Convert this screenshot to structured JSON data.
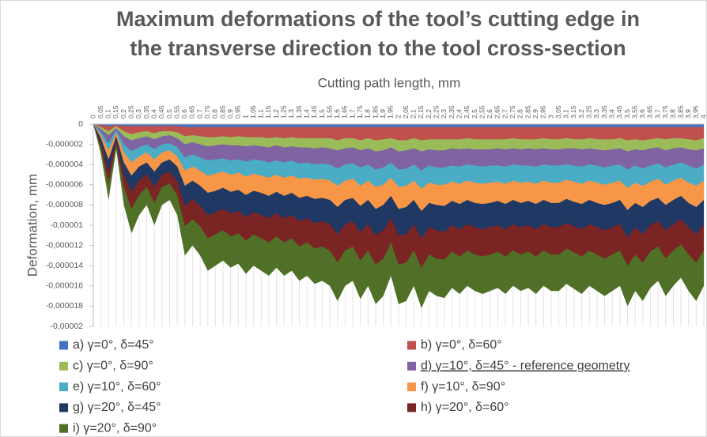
{
  "chart_data": {
    "type": "area",
    "title": [
      "Maximum deformations of the tool’s cutting edge in",
      "the transverse direction to the tool cross-section"
    ],
    "x_label": "Cutting path length, mm",
    "y_label": "Deformation, mm",
    "categories": [
      "0",
      "0,05",
      "0,1",
      "0,15",
      "0,2",
      "0,25",
      "0,3",
      "0,35",
      "0,4",
      "0,45",
      "0,5",
      "0,55",
      "0,6",
      "0,65",
      "0,7",
      "0,75",
      "0,8",
      "0,85",
      "0,9",
      "0,95",
      "1",
      "1,05",
      "1,1",
      "1,15",
      "1,2",
      "1,25",
      "1,3",
      "1,35",
      "1,4",
      "1,45",
      "1,5",
      "1,55",
      "1,6",
      "1,65",
      "1,7",
      "1,75",
      "1,8",
      "1,85",
      "1,9",
      "1,95",
      "2",
      "2,05",
      "2,1",
      "2,15",
      "2,2",
      "2,25",
      "2,3",
      "2,35",
      "2,4",
      "2,45",
      "2,5",
      "2,55",
      "2,6",
      "2,65",
      "2,7",
      "2,75",
      "2,8",
      "2,85",
      "2,9",
      "2,95",
      "3",
      "3,05",
      "3,1",
      "3,15",
      "3,2",
      "3,25",
      "3,3",
      "3,35",
      "3,4",
      "3,45",
      "3,5",
      "3,55",
      "3,6",
      "3,65",
      "3,7",
      "3,75",
      "3,8",
      "3,85",
      "3,9",
      "3,95",
      "4"
    ],
    "ylim": [
      -2e-05,
      0
    ],
    "yticks": [
      0,
      {
        "value": -2e-06,
        "label": "-0,000002"
      },
      {
        "value": -4e-06,
        "label": "-0,000004"
      },
      {
        "value": -6e-06,
        "label": "-0,000006"
      },
      {
        "value": -8e-06,
        "label": "-0,000008"
      },
      {
        "value": -1e-05,
        "label": "-0,00001"
      },
      {
        "value": -1.2e-05,
        "label": "-0,000012"
      },
      {
        "value": -1.4e-05,
        "label": "-0,000014"
      },
      {
        "value": -1.6e-05,
        "label": "-0,000016"
      },
      {
        "value": -1.8e-05,
        "label": "-0,000018"
      },
      {
        "value": -2e-05,
        "label": "-0,00002"
      }
    ],
    "legend": "bottom",
    "series": [
      {
        "name": "a) γ=0°, δ=45°",
        "color": "#4472c4",
        "values": [
          0,
          -1e-07,
          -2e-07,
          -1e-07,
          -2e-07,
          -2e-07,
          -2e-07,
          -2e-07,
          -2e-07,
          -2e-07,
          -2e-07,
          -2e-07,
          -3e-07,
          -3e-07,
          -3e-07,
          -3e-07,
          -3e-07,
          -3e-07,
          -3e-07,
          -3e-07,
          -3e-07,
          -3e-07,
          -3e-07,
          -3e-07,
          -3e-07,
          -3e-07,
          -3e-07,
          -3e-07,
          -3e-07,
          -3e-07,
          -3e-07,
          -3e-07,
          -3e-07,
          -3e-07,
          -3e-07,
          -3e-07,
          -3e-07,
          -3e-07,
          -3e-07,
          -3e-07,
          -3e-07,
          -3e-07,
          -3e-07,
          -3e-07,
          -3e-07,
          -3e-07,
          -3e-07,
          -3e-07,
          -3e-07,
          -3e-07,
          -3e-07,
          -3e-07,
          -3e-07,
          -3e-07,
          -3e-07,
          -3e-07,
          -3e-07,
          -3e-07,
          -3e-07,
          -3e-07,
          -3e-07,
          -3e-07,
          -3e-07,
          -3e-07,
          -3e-07,
          -3e-07,
          -3e-07,
          -3e-07,
          -3e-07,
          -3e-07,
          -3e-07,
          -3e-07,
          -3e-07,
          -3e-07,
          -3e-07,
          -3e-07,
          -3e-07,
          -3e-07,
          -3e-07,
          -3e-07,
          -3e-07
        ]
      },
      {
        "name": "b) γ=0°, δ=60°",
        "color": "#c0504d",
        "values": [
          0,
          -3e-07,
          -7e-07,
          -2e-07,
          -7e-07,
          -1e-06,
          -8e-07,
          -7e-07,
          -9e-07,
          -7e-07,
          -7e-07,
          -8e-07,
          -1.2e-06,
          -1.1e-06,
          -1.2e-06,
          -1.3e-06,
          -1.3e-06,
          -1.2e-06,
          -1.3e-06,
          -1.2e-06,
          -1.3e-06,
          -1.3e-06,
          -1.3e-06,
          -1.4e-06,
          -1.3e-06,
          -1.4e-06,
          -1.3e-06,
          -1.4e-06,
          -1.4e-06,
          -1.4e-06,
          -1.4e-06,
          -1.4e-06,
          -1.6e-06,
          -1.4e-06,
          -1.4e-06,
          -1.6e-06,
          -1.4e-06,
          -1.6e-06,
          -1.5e-06,
          -1.4e-06,
          -1.6e-06,
          -1.6e-06,
          -1.4e-06,
          -1.6e-06,
          -1.5e-06,
          -1.5e-06,
          -1.5e-06,
          -1.5e-06,
          -1.5e-06,
          -1.4e-06,
          -1.5e-06,
          -1.5e-06,
          -1.5e-06,
          -1.5e-06,
          -1.5e-06,
          -1.4e-06,
          -1.5e-06,
          -1.5e-06,
          -1.5e-06,
          -1.4e-06,
          -1.5e-06,
          -1.5e-06,
          -1.4e-06,
          -1.5e-06,
          -1.5e-06,
          -1.4e-06,
          -1.5e-06,
          -1.5e-06,
          -1.5e-06,
          -1.4e-06,
          -1.6e-06,
          -1.5e-06,
          -1.6e-06,
          -1.5e-06,
          -1.4e-06,
          -1.5e-06,
          -1.4e-06,
          -1.4e-06,
          -1.5e-06,
          -1.6e-06,
          -1.4e-06
        ]
      },
      {
        "name": "c) γ=0°, δ=90°",
        "color": "#9bbb59",
        "values": [
          0,
          -5e-07,
          -1.1e-06,
          -4e-07,
          -1.2e-06,
          -1.6e-06,
          -1.4e-06,
          -1.2e-06,
          -1.5e-06,
          -1.2e-06,
          -1.1e-06,
          -1.4e-06,
          -2e-06,
          -1.8e-06,
          -2e-06,
          -2.2e-06,
          -2.1e-06,
          -2e-06,
          -2.1e-06,
          -2.1e-06,
          -2.2e-06,
          -2.1e-06,
          -2.2e-06,
          -2.3e-06,
          -2.1e-06,
          -2.3e-06,
          -2.2e-06,
          -2.3e-06,
          -2.3e-06,
          -2.4e-06,
          -2.3e-06,
          -2.4e-06,
          -2.6e-06,
          -2.4e-06,
          -2.3e-06,
          -2.6e-06,
          -2.4e-06,
          -2.7e-06,
          -2.6e-06,
          -2.3e-06,
          -2.7e-06,
          -2.6e-06,
          -2.4e-06,
          -2.7e-06,
          -2.5e-06,
          -2.6e-06,
          -2.6e-06,
          -2.4e-06,
          -2.5e-06,
          -2.4e-06,
          -2.5e-06,
          -2.5e-06,
          -2.5e-06,
          -2.4e-06,
          -2.5e-06,
          -2.4e-06,
          -2.5e-06,
          -2.4e-06,
          -2.5e-06,
          -2.4e-06,
          -2.5e-06,
          -2.5e-06,
          -2.4e-06,
          -2.4e-06,
          -2.5e-06,
          -2.4e-06,
          -2.5e-06,
          -2.6e-06,
          -2.5e-06,
          -2.4e-06,
          -2.7e-06,
          -2.5e-06,
          -2.6e-06,
          -2.4e-06,
          -2.3e-06,
          -2.6e-06,
          -2.4e-06,
          -2.3e-06,
          -2.5e-06,
          -2.6e-06,
          -2.4e-06
        ]
      },
      {
        "name": "d) γ=10°, δ=45° - reference geometry",
        "color": "#8064a2",
        "values": [
          0,
          -8e-07,
          -1.9e-06,
          -6e-07,
          -2e-06,
          -2.7e-06,
          -2.3e-06,
          -2e-06,
          -2.5e-06,
          -2e-06,
          -1.9e-06,
          -2.3e-06,
          -3.3e-06,
          -3e-06,
          -3.3e-06,
          -3.6e-06,
          -3.5e-06,
          -3.4e-06,
          -3.6e-06,
          -3.5e-06,
          -3.7e-06,
          -3.5e-06,
          -3.6e-06,
          -3.8e-06,
          -3.6e-06,
          -3.8e-06,
          -3.6e-06,
          -3.9e-06,
          -3.8e-06,
          -4e-06,
          -3.9e-06,
          -4e-06,
          -4.4e-06,
          -4e-06,
          -3.9e-06,
          -4.3e-06,
          -4e-06,
          -4.5e-06,
          -4.3e-06,
          -3.8e-06,
          -4.5e-06,
          -4.4e-06,
          -4e-06,
          -4.6e-06,
          -4.1e-06,
          -4.3e-06,
          -4.3e-06,
          -4.1e-06,
          -4.2e-06,
          -4e-06,
          -4.1e-06,
          -4.2e-06,
          -4.1e-06,
          -4.1e-06,
          -4.2e-06,
          -4e-06,
          -4.1e-06,
          -4.1e-06,
          -4.2e-06,
          -4e-06,
          -4.1e-06,
          -4.1e-06,
          -4e-06,
          -4.1e-06,
          -4.2e-06,
          -4e-06,
          -4.1e-06,
          -4.3e-06,
          -4.1e-06,
          -4e-06,
          -4.5e-06,
          -4.1e-06,
          -4.4e-06,
          -4.1e-06,
          -3.9e-06,
          -4.3e-06,
          -4e-06,
          -3.8e-06,
          -4.1e-06,
          -4.4e-06,
          -4e-06
        ]
      },
      {
        "name": "e) γ=10°, δ=60°",
        "color": "#4bacc6",
        "values": [
          0,
          -1.1e-06,
          -2.6e-06,
          -9e-07,
          -2.8e-06,
          -3.8e-06,
          -3.2e-06,
          -2.8e-06,
          -3.5e-06,
          -2.8e-06,
          -2.6e-06,
          -3.2e-06,
          -4.6e-06,
          -4.2e-06,
          -4.6e-06,
          -5.1e-06,
          -4.9e-06,
          -4.7e-06,
          -5e-06,
          -4.8e-06,
          -5.2e-06,
          -4.9e-06,
          -5.1e-06,
          -5.3e-06,
          -5e-06,
          -5.3e-06,
          -5.1e-06,
          -5.4e-06,
          -5.3e-06,
          -5.5e-06,
          -5.4e-06,
          -5.6e-06,
          -6.1e-06,
          -5.6e-06,
          -5.4e-06,
          -6.1e-06,
          -5.6e-06,
          -6.2e-06,
          -6e-06,
          -5.3e-06,
          -6.2e-06,
          -6.1e-06,
          -5.6e-06,
          -6.4e-06,
          -5.8e-06,
          -6e-06,
          -6e-06,
          -5.7e-06,
          -5.9e-06,
          -5.6e-06,
          -5.8e-06,
          -5.9e-06,
          -5.8e-06,
          -5.7e-06,
          -5.9e-06,
          -5.6e-06,
          -5.8e-06,
          -5.7e-06,
          -5.9e-06,
          -5.6e-06,
          -5.8e-06,
          -5.8e-06,
          -5.5e-06,
          -5.7e-06,
          -5.9e-06,
          -5.6e-06,
          -5.8e-06,
          -6e-06,
          -5.8e-06,
          -5.6e-06,
          -6.3e-06,
          -5.8e-06,
          -6.1e-06,
          -5.7e-06,
          -5.4e-06,
          -6e-06,
          -5.6e-06,
          -5.3e-06,
          -5.8e-06,
          -6.1e-06,
          -5.6e-06
        ]
      },
      {
        "name": "f) γ=10°, δ=90°",
        "color": "#f79646",
        "values": [
          0,
          -1.4e-06,
          -3.5e-06,
          -1.2e-06,
          -3.8e-06,
          -5.1e-06,
          -4.2e-06,
          -3.8e-06,
          -4.7e-06,
          -3.8e-06,
          -3.5e-06,
          -4.2e-06,
          -6.1e-06,
          -5.6e-06,
          -6.1e-06,
          -6.8e-06,
          -6.6e-06,
          -6.3e-06,
          -6.7e-06,
          -6.5e-06,
          -7e-06,
          -6.6e-06,
          -6.8e-06,
          -7.1e-06,
          -6.7e-06,
          -7.1e-06,
          -6.8e-06,
          -7.3e-06,
          -7.1e-06,
          -7.4e-06,
          -7.3e-06,
          -7.5e-06,
          -8.2e-06,
          -7.5e-06,
          -7.3e-06,
          -8.1e-06,
          -7.5e-06,
          -8.4e-06,
          -8e-06,
          -7.1e-06,
          -8.4e-06,
          -8.2e-06,
          -7.5e-06,
          -8.6e-06,
          -7.8e-06,
          -8e-06,
          -8.1e-06,
          -7.6e-06,
          -7.9e-06,
          -7.5e-06,
          -7.8e-06,
          -7.9e-06,
          -7.8e-06,
          -7.6e-06,
          -7.9e-06,
          -7.5e-06,
          -7.8e-06,
          -7.6e-06,
          -7.9e-06,
          -7.5e-06,
          -7.8e-06,
          -7.8e-06,
          -7.4e-06,
          -7.7e-06,
          -7.9e-06,
          -7.5e-06,
          -7.8e-06,
          -8e-06,
          -7.8e-06,
          -7.5e-06,
          -8.5e-06,
          -7.8e-06,
          -8.2e-06,
          -7.6e-06,
          -7.3e-06,
          -8e-06,
          -7.5e-06,
          -7.1e-06,
          -7.8e-06,
          -8.2e-06,
          -7.5e-06
        ]
      },
      {
        "name": "g) γ=20°, δ=45°",
        "color": "#1f3864",
        "values": [
          0,
          -1.9e-06,
          -4.7e-06,
          -1.6e-06,
          -5e-06,
          -6.7e-06,
          -5.6e-06,
          -5e-06,
          -6.2e-06,
          -5e-06,
          -4.7e-06,
          -5.6e-06,
          -8.1e-06,
          -7.4e-06,
          -8.1e-06,
          -9e-06,
          -8.7e-06,
          -8.4e-06,
          -8.8e-06,
          -8.6e-06,
          -9.2e-06,
          -8.7e-06,
          -9e-06,
          -9.3e-06,
          -8.8e-06,
          -9.3e-06,
          -9e-06,
          -9.6e-06,
          -9.3e-06,
          -9.8e-06,
          -9.6e-06,
          -9.9e-06,
          -1.09e-05,
          -9.9e-06,
          -9.6e-06,
          -1.07e-05,
          -9.9e-06,
          -1.1e-05,
          -1.05e-05,
          -9.3e-06,
          -1.1e-05,
          -1.09e-05,
          -9.9e-06,
          -1.13e-05,
          -1.02e-05,
          -1.05e-05,
          -1.07e-05,
          -1e-05,
          -1.04e-05,
          -9.9e-06,
          -1.02e-05,
          -1.04e-05,
          -1.02e-05,
          -1e-05,
          -1.04e-05,
          -9.9e-06,
          -1.02e-05,
          -1e-05,
          -1.04e-05,
          -9.9e-06,
          -1.02e-05,
          -1.02e-05,
          -9.8e-06,
          -1.01e-05,
          -1.04e-05,
          -9.9e-06,
          -1.02e-05,
          -1.05e-05,
          -1.02e-05,
          -9.9e-06,
          -1.12e-05,
          -1.02e-05,
          -1.09e-05,
          -1e-05,
          -9.6e-06,
          -1.05e-05,
          -9.9e-06,
          -9.4e-06,
          -1.02e-05,
          -1.09e-05,
          -9.9e-06
        ]
      },
      {
        "name": "h) γ=20°, δ=60°",
        "color": "#7b2424",
        "values": [
          0,
          -2.3e-06,
          -5.9e-06,
          -2e-06,
          -6.2e-06,
          -8.4e-06,
          -7e-06,
          -6.2e-06,
          -7.8e-06,
          -6.2e-06,
          -5.9e-06,
          -7e-06,
          -1.01e-05,
          -9.4e-06,
          -1.01e-05,
          -1.13e-05,
          -1.09e-05,
          -1.05e-05,
          -1.11e-05,
          -1.08e-05,
          -1.15e-05,
          -1.09e-05,
          -1.13e-05,
          -1.17e-05,
          -1.11e-05,
          -1.17e-05,
          -1.13e-05,
          -1.21e-05,
          -1.17e-05,
          -1.23e-05,
          -1.21e-05,
          -1.25e-05,
          -1.37e-05,
          -1.25e-05,
          -1.21e-05,
          -1.35e-05,
          -1.25e-05,
          -1.39e-05,
          -1.33e-05,
          -1.17e-05,
          -1.39e-05,
          -1.37e-05,
          -1.25e-05,
          -1.42e-05,
          -1.29e-05,
          -1.33e-05,
          -1.34e-05,
          -1.26e-05,
          -1.31e-05,
          -1.25e-05,
          -1.29e-05,
          -1.31e-05,
          -1.29e-05,
          -1.26e-05,
          -1.31e-05,
          -1.25e-05,
          -1.29e-05,
          -1.26e-05,
          -1.31e-05,
          -1.25e-05,
          -1.29e-05,
          -1.29e-05,
          -1.23e-05,
          -1.27e-05,
          -1.31e-05,
          -1.25e-05,
          -1.29e-05,
          -1.33e-05,
          -1.29e-05,
          -1.25e-05,
          -1.4e-05,
          -1.29e-05,
          -1.37e-05,
          -1.26e-05,
          -1.21e-05,
          -1.33e-05,
          -1.25e-05,
          -1.19e-05,
          -1.29e-05,
          -1.37e-05,
          -1.25e-05
        ]
      },
      {
        "name": "i) γ=20°, δ=90°",
        "color": "#4f7026",
        "values": [
          0,
          -3e-06,
          -7.5e-06,
          -2.5e-06,
          -8e-06,
          -1.08e-05,
          -9e-06,
          -8e-06,
          -1e-05,
          -8e-06,
          -7.5e-06,
          -9e-06,
          -1.3e-05,
          -1.2e-05,
          -1.3e-05,
          -1.45e-05,
          -1.4e-05,
          -1.35e-05,
          -1.42e-05,
          -1.38e-05,
          -1.48e-05,
          -1.4e-05,
          -1.45e-05,
          -1.5e-05,
          -1.42e-05,
          -1.5e-05,
          -1.45e-05,
          -1.55e-05,
          -1.5e-05,
          -1.58e-05,
          -1.55e-05,
          -1.6e-05,
          -1.75e-05,
          -1.6e-05,
          -1.55e-05,
          -1.73e-05,
          -1.6e-05,
          -1.78e-05,
          -1.7e-05,
          -1.5e-05,
          -1.78e-05,
          -1.75e-05,
          -1.6e-05,
          -1.82e-05,
          -1.65e-05,
          -1.7e-05,
          -1.72e-05,
          -1.62e-05,
          -1.68e-05,
          -1.6e-05,
          -1.65e-05,
          -1.68e-05,
          -1.65e-05,
          -1.62e-05,
          -1.68e-05,
          -1.6e-05,
          -1.65e-05,
          -1.62e-05,
          -1.68e-05,
          -1.6e-05,
          -1.65e-05,
          -1.65e-05,
          -1.58e-05,
          -1.63e-05,
          -1.68e-05,
          -1.6e-05,
          -1.65e-05,
          -1.7e-05,
          -1.65e-05,
          -1.6e-05,
          -1.8e-05,
          -1.65e-05,
          -1.75e-05,
          -1.62e-05,
          -1.55e-05,
          -1.7e-05,
          -1.6e-05,
          -1.52e-05,
          -1.65e-05,
          -1.75e-05,
          -1.6e-05
        ]
      }
    ]
  }
}
